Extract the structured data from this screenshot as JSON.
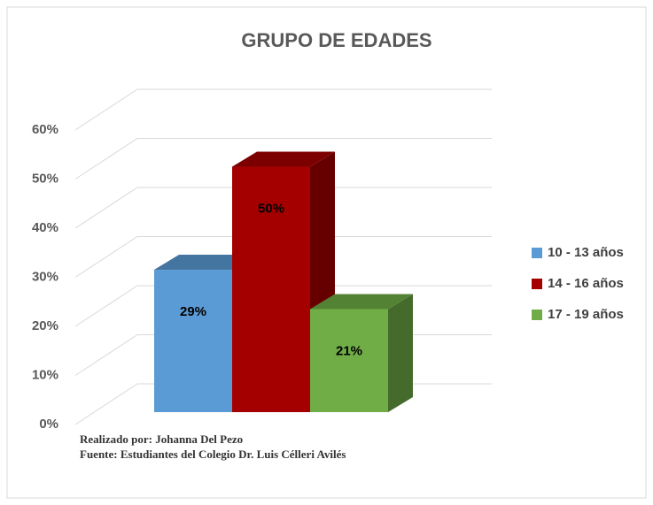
{
  "chart_data": {
    "type": "bar3d",
    "title": "GRUPO DE EDADES",
    "series": [
      {
        "name": "10 - 13 años",
        "color": "#5b9bd5",
        "values": [
          29
        ],
        "value_labels": [
          "29%"
        ]
      },
      {
        "name": "14 - 16 años",
        "color": "#a50000",
        "values": [
          50
        ],
        "value_labels": [
          "50%"
        ]
      },
      {
        "name": "17 - 19 años",
        "color": "#70ad47",
        "values": [
          21
        ],
        "value_labels": [
          "21%"
        ]
      }
    ],
    "ylim": [
      0,
      60
    ],
    "yticks": [
      {
        "value": 0,
        "label": "0%"
      },
      {
        "value": 10,
        "label": "10%"
      },
      {
        "value": 20,
        "label": "20%"
      },
      {
        "value": 30,
        "label": "30%"
      },
      {
        "value": 40,
        "label": "40%"
      },
      {
        "value": 50,
        "label": "50%"
      },
      {
        "value": 60,
        "label": "60%"
      }
    ],
    "grid": true,
    "legend": "right",
    "notes": [
      "Realizado por: Johanna Del Pezo",
      "Fuente: Estudiantes del Colegio Dr. Luis Célleri Avilés"
    ]
  }
}
